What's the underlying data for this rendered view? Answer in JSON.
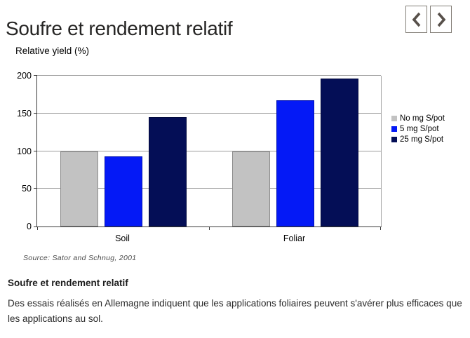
{
  "header": {
    "title": "Soufre et rendement relatif"
  },
  "nav": {
    "prev_icon": "chevron-left",
    "next_icon": "chevron-right"
  },
  "chart_data": {
    "type": "bar",
    "title": "Relative yield (%)",
    "categories": [
      "Soil",
      "Foliar"
    ],
    "series": [
      {
        "name": "No mg S/pot",
        "color": "#c2c2c2",
        "values": [
          100,
          100
        ]
      },
      {
        "name": "5 mg S/pot",
        "color": "#0419f6",
        "values": [
          93,
          167
        ]
      },
      {
        "name": "25 mg S/pot",
        "color": "#040e56",
        "values": [
          145,
          196
        ]
      }
    ],
    "ylim": [
      0,
      200
    ],
    "yticks": [
      0,
      50,
      100,
      150,
      200
    ],
    "grid": true,
    "legend_position": "right",
    "source": "Source: Sator and Schnug, 2001"
  },
  "footer": {
    "heading": "Soufre et rendement relatif",
    "body": "Des essais réalisés en Allemagne indiquent que les applications foliaires peuvent s'avérer plus efficaces que les applications au sol."
  }
}
